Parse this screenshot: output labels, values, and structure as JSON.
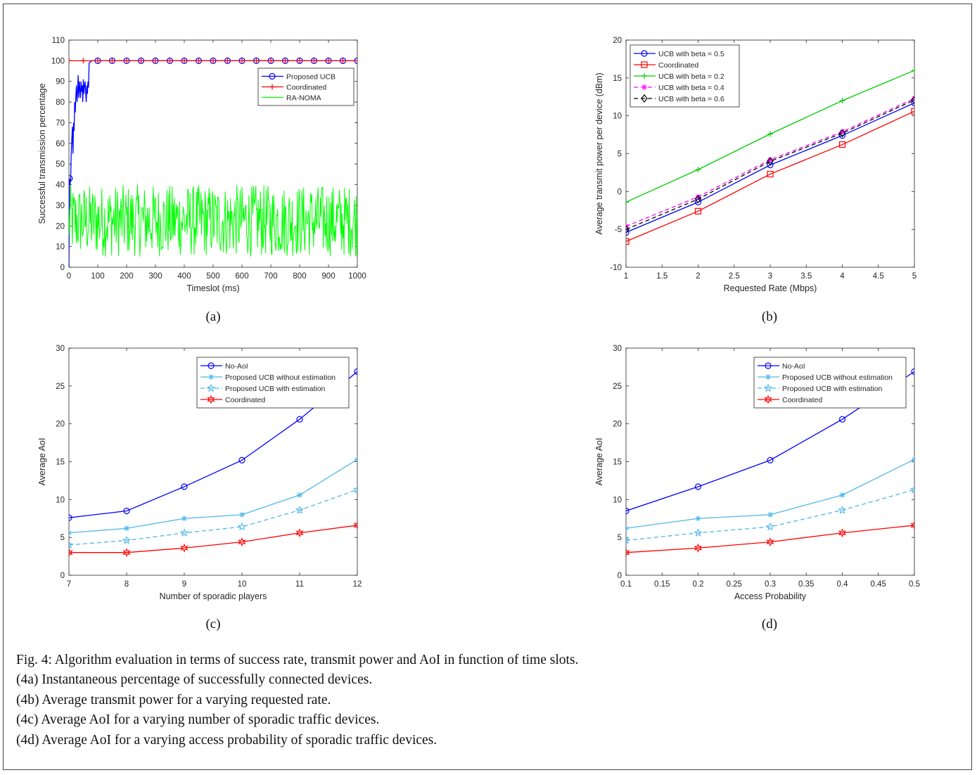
{
  "charts": [
    {
      "id": "a",
      "chart_data": {
        "type": "line",
        "xlabel": "Timeslot (ms)",
        "ylabel": "Successful transmission percentage",
        "xlim": [
          0,
          1000
        ],
        "ylim": [
          0,
          110
        ],
        "xticks": [
          0,
          100,
          200,
          300,
          400,
          500,
          600,
          700,
          800,
          900,
          1000
        ],
        "yticks": [
          0,
          10,
          20,
          30,
          40,
          50,
          60,
          70,
          80,
          90,
          100,
          110
        ],
        "legend_position": "top-right",
        "series": [
          {
            "name": "Proposed UCB",
            "color": "#0000ff",
            "marker": "circle",
            "x": [
              0,
              2,
              4,
              6,
              8,
              10,
              12,
              14,
              16,
              18,
              20,
              22,
              24,
              26,
              28,
              30,
              32,
              34,
              36,
              38,
              40,
              42,
              44,
              46,
              48,
              50,
              52,
              54,
              56,
              58,
              60,
              62,
              64,
              66,
              68,
              70,
              80,
              100,
              150,
              200,
              250,
              300,
              350,
              400,
              450,
              500,
              550,
              600,
              650,
              700,
              750,
              800,
              850,
              900,
              950,
              1000
            ],
            "y": [
              0,
              43,
              40,
              43,
              55,
              62,
              68,
              55,
              70,
              66,
              80,
              75,
              83,
              88,
              80,
              85,
              93,
              82,
              90,
              86,
              82,
              90,
              85,
              88,
              80,
              91,
              84,
              88,
              90,
              85,
              80,
              88,
              84,
              90,
              87,
              99,
              100,
              100,
              100,
              100,
              100,
              100,
              100,
              100,
              100,
              100,
              100,
              100,
              100,
              100,
              100,
              100,
              100,
              100,
              100,
              100
            ]
          },
          {
            "name": "Coordinated",
            "color": "#ff0000",
            "marker": "plus",
            "x": [
              0,
              50,
              100,
              150,
              200,
              250,
              300,
              350,
              400,
              450,
              500,
              550,
              600,
              650,
              700,
              750,
              800,
              850,
              900,
              950,
              1000
            ],
            "y": [
              100,
              100,
              100,
              100,
              100,
              100,
              100,
              100,
              100,
              100,
              100,
              100,
              100,
              100,
              100,
              100,
              100,
              100,
              100,
              100,
              100
            ]
          },
          {
            "name": "RA-NOMA",
            "color": "#00ff00",
            "marker": "none",
            "fluctuation": {
              "min": 5,
              "max": 40,
              "step_ms": 2
            }
          }
        ]
      }
    },
    {
      "id": "b",
      "chart_data": {
        "type": "line",
        "xlabel": "Requested Rate (Mbps)",
        "ylabel": "Average transmit power per device (dBm)",
        "xlim": [
          1,
          5
        ],
        "ylim": [
          -10,
          20
        ],
        "xticks": [
          1,
          1.5,
          2,
          2.5,
          3,
          3.5,
          4,
          4.5,
          5
        ],
        "yticks": [
          -10,
          -5,
          0,
          5,
          10,
          15,
          20
        ],
        "legend_position": "top-left",
        "series": [
          {
            "name": "UCB with beta = 0.5",
            "color": "#0000ff",
            "marker": "circle",
            "x": [
              1,
              2,
              3,
              4,
              5
            ],
            "y": [
              -5.4,
              -1.4,
              3.5,
              7.4,
              11.7
            ]
          },
          {
            "name": "Coordinated",
            "color": "#ff0000",
            "marker": "square",
            "x": [
              1,
              2,
              3,
              4,
              5
            ],
            "y": [
              -6.6,
              -2.6,
              2.3,
              6.2,
              10.6
            ]
          },
          {
            "name": "UCB with beta = 0.2",
            "color": "#00cc00",
            "marker": "plus",
            "x": [
              1,
              2,
              3,
              4,
              5
            ],
            "y": [
              -1.4,
              2.9,
              7.6,
              12.0,
              16.0
            ]
          },
          {
            "name": "UCB with beta = 0.4",
            "color": "#ff00ff",
            "marker": "asterisk",
            "dash": true,
            "x": [
              1,
              2,
              3,
              4,
              5
            ],
            "y": [
              -4.6,
              -0.7,
              4.2,
              7.9,
              12.3
            ]
          },
          {
            "name": "UCB with beta = 0.6",
            "color": "#000000",
            "marker": "diamond",
            "dash": true,
            "x": [
              1,
              2,
              3,
              4,
              5
            ],
            "y": [
              -5.0,
              -1.0,
              4.0,
              7.7,
              12.1
            ]
          }
        ]
      }
    },
    {
      "id": "c",
      "chart_data": {
        "type": "line",
        "xlabel": "Number of sporadic players",
        "ylabel": "Average AoI",
        "xlim": [
          7,
          12
        ],
        "ylim": [
          0,
          30
        ],
        "xticks": [
          7,
          8,
          9,
          10,
          11,
          12
        ],
        "yticks": [
          0,
          5,
          10,
          15,
          20,
          25,
          30
        ],
        "legend_position": "top-right",
        "series": [
          {
            "name": "No-AoI",
            "color": "#0000ff",
            "marker": "circle",
            "x": [
              7,
              8,
              9,
              10,
              11,
              12
            ],
            "y": [
              7.6,
              8.5,
              11.7,
              15.2,
              20.6,
              26.9
            ]
          },
          {
            "name": "Proposed UCB without estimation",
            "color": "#4db8e8",
            "marker": "asterisk",
            "x": [
              7,
              8,
              9,
              10,
              11,
              12
            ],
            "y": [
              5.6,
              6.2,
              7.5,
              8.0,
              10.6,
              15.3
            ]
          },
          {
            "name": "Proposed UCB with estimation",
            "color": "#4db8e8",
            "marker": "star",
            "dash": true,
            "x": [
              7,
              8,
              9,
              10,
              11,
              12
            ],
            "y": [
              4.0,
              4.6,
              5.6,
              6.4,
              8.6,
              11.3
            ]
          },
          {
            "name": "Coordinated",
            "color": "#ff0000",
            "marker": "hexagram",
            "x": [
              7,
              8,
              9,
              10,
              11,
              12
            ],
            "y": [
              3.0,
              3.0,
              3.6,
              4.4,
              5.6,
              6.6
            ]
          }
        ]
      }
    },
    {
      "id": "d",
      "chart_data": {
        "type": "line",
        "xlabel": "Access Probability",
        "ylabel": "Average AoI",
        "xlim": [
          0.1,
          0.5
        ],
        "ylim": [
          0,
          30
        ],
        "xticks": [
          0.1,
          0.15,
          0.2,
          0.25,
          0.3,
          0.35,
          0.4,
          0.45,
          0.5
        ],
        "yticks": [
          0,
          5,
          10,
          15,
          20,
          25,
          30
        ],
        "legend_position": "top-right",
        "series": [
          {
            "name": "No-AoI",
            "color": "#0000ff",
            "marker": "circle",
            "x": [
              0.1,
              0.2,
              0.3,
              0.4,
              0.5
            ],
            "y": [
              8.5,
              11.7,
              15.2,
              20.6,
              26.9
            ]
          },
          {
            "name": "Proposed UCB without estimation",
            "color": "#4db8e8",
            "marker": "asterisk",
            "x": [
              0.1,
              0.2,
              0.3,
              0.4,
              0.5
            ],
            "y": [
              6.2,
              7.5,
              8.0,
              10.6,
              15.3
            ]
          },
          {
            "name": "Proposed UCB with estimation",
            "color": "#4db8e8",
            "marker": "star",
            "dash": true,
            "x": [
              0.1,
              0.2,
              0.3,
              0.4,
              0.5
            ],
            "y": [
              4.6,
              5.6,
              6.4,
              8.6,
              11.3
            ]
          },
          {
            "name": "Coordinated",
            "color": "#ff0000",
            "marker": "hexagram",
            "x": [
              0.1,
              0.2,
              0.3,
              0.4,
              0.5
            ],
            "y": [
              3.0,
              3.6,
              4.4,
              5.6,
              6.6
            ]
          }
        ]
      }
    }
  ],
  "sublabels": {
    "a": "(a)",
    "b": "(b)",
    "c": "(c)",
    "d": "(d)"
  },
  "caption": {
    "main": "Fig. 4: Algorithm evaluation in terms of success rate, transmit power and AoI in function of time slots.",
    "line_a": "(4a) Instantaneous percentage of successfully connected devices.",
    "line_b": "(4b) Average transmit power for a varying requested rate.",
    "line_c": "(4c) Average AoI for a varying number of sporadic traffic devices.",
    "line_d": "(4d) Average AoI for a varying access probability of sporadic traffic devices."
  }
}
